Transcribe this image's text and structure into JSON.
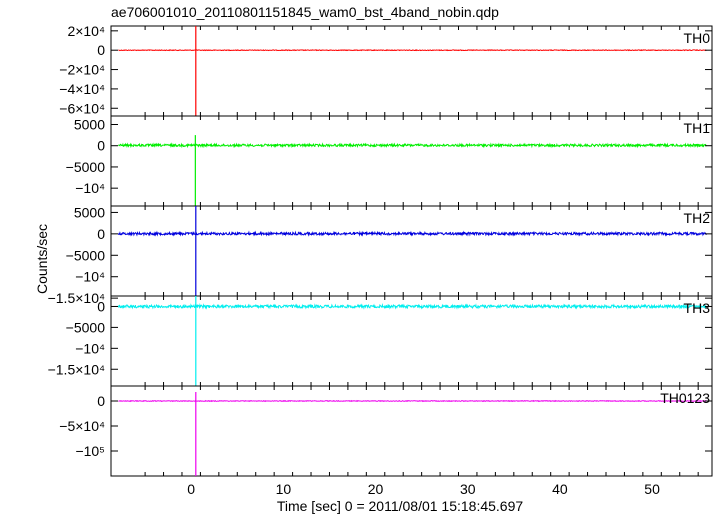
{
  "title": "ae706001010_20110801151845_wam0_bst_4band_nobin.qdp",
  "ylabel": "Counts/sec",
  "xlabel": "Time [sec] 0 = 2011/08/01 15:18:45.697",
  "chart_data": {
    "type": "line",
    "title": "ae706001010_20110801151845_wam0_bst_4band_nobin.qdp",
    "xlabel": "Time [sec] 0 = 2011/08/01 15:18:45.697",
    "ylabel": "Counts/sec",
    "xlim": [
      -8.7,
      56.5
    ],
    "xticks": [
      0,
      10,
      20,
      30,
      40,
      50
    ],
    "grid": false,
    "panels": [
      {
        "name": "TH0",
        "color": "#ff0000",
        "ylim": [
          -68000,
          25000
        ],
        "yticks": [
          {
            "v": 20000,
            "label": "2×10⁴"
          },
          {
            "v": 0,
            "label": "0"
          },
          {
            "v": -20000,
            "label": "−2×10⁴"
          },
          {
            "v": -40000,
            "label": "−4×10⁴"
          },
          {
            "v": -60000,
            "label": "−6×10⁴"
          }
        ],
        "baseline": 0,
        "noise": 350,
        "burst": {
          "t": 0.5,
          "top": 25000,
          "bottom": -68000
        }
      },
      {
        "name": "TH1",
        "color": "#00ee00",
        "ylim": [
          -14200,
          7000
        ],
        "yticks": [
          {
            "v": 5000,
            "label": "5000"
          },
          {
            "v": 0,
            "label": "0"
          },
          {
            "v": -5000,
            "label": "−5000"
          },
          {
            "v": -10000,
            "label": "−10⁴"
          }
        ],
        "baseline": 100,
        "noise": 280,
        "burst": {
          "t": 0.45,
          "top": 2500,
          "bottom": -14200
        }
      },
      {
        "name": "TH2",
        "color": "#0000dd",
        "ylim": [
          -14500,
          6500
        ],
        "yticks": [
          {
            "v": 5000,
            "label": "5000"
          },
          {
            "v": 0,
            "label": "0"
          },
          {
            "v": -5000,
            "label": "−5000"
          },
          {
            "v": -10000,
            "label": "−10⁴"
          },
          {
            "v": -15000,
            "label": "−1.5×10⁴"
          }
        ],
        "baseline": 50,
        "noise": 300,
        "burst": {
          "t": 0.5,
          "top": 6500,
          "bottom": -14500
        }
      },
      {
        "name": "TH3",
        "color": "#00eeee",
        "ylim": [
          -19000,
          2500
        ],
        "yticks": [
          {
            "v": 0,
            "label": "0"
          },
          {
            "v": -5000,
            "label": "−5000"
          },
          {
            "v": -10000,
            "label": "−10⁴"
          },
          {
            "v": -15000,
            "label": "−1.5×10⁴"
          }
        ],
        "baseline": 0,
        "noise": 350,
        "burst": {
          "t": 0.5,
          "top": 2500,
          "bottom": -19000
        }
      },
      {
        "name": "TH0123",
        "color": "#ee00ee",
        "ylim": [
          -150000,
          30000
        ],
        "yticks": [
          {
            "v": 0,
            "label": "0"
          },
          {
            "v": -50000,
            "label": "−5×10⁴"
          },
          {
            "v": -100000,
            "label": "−10⁵"
          }
        ],
        "baseline": 0,
        "noise": 700,
        "burst": {
          "t": 0.5,
          "top": 18000,
          "bottom": -150000
        }
      }
    ]
  }
}
